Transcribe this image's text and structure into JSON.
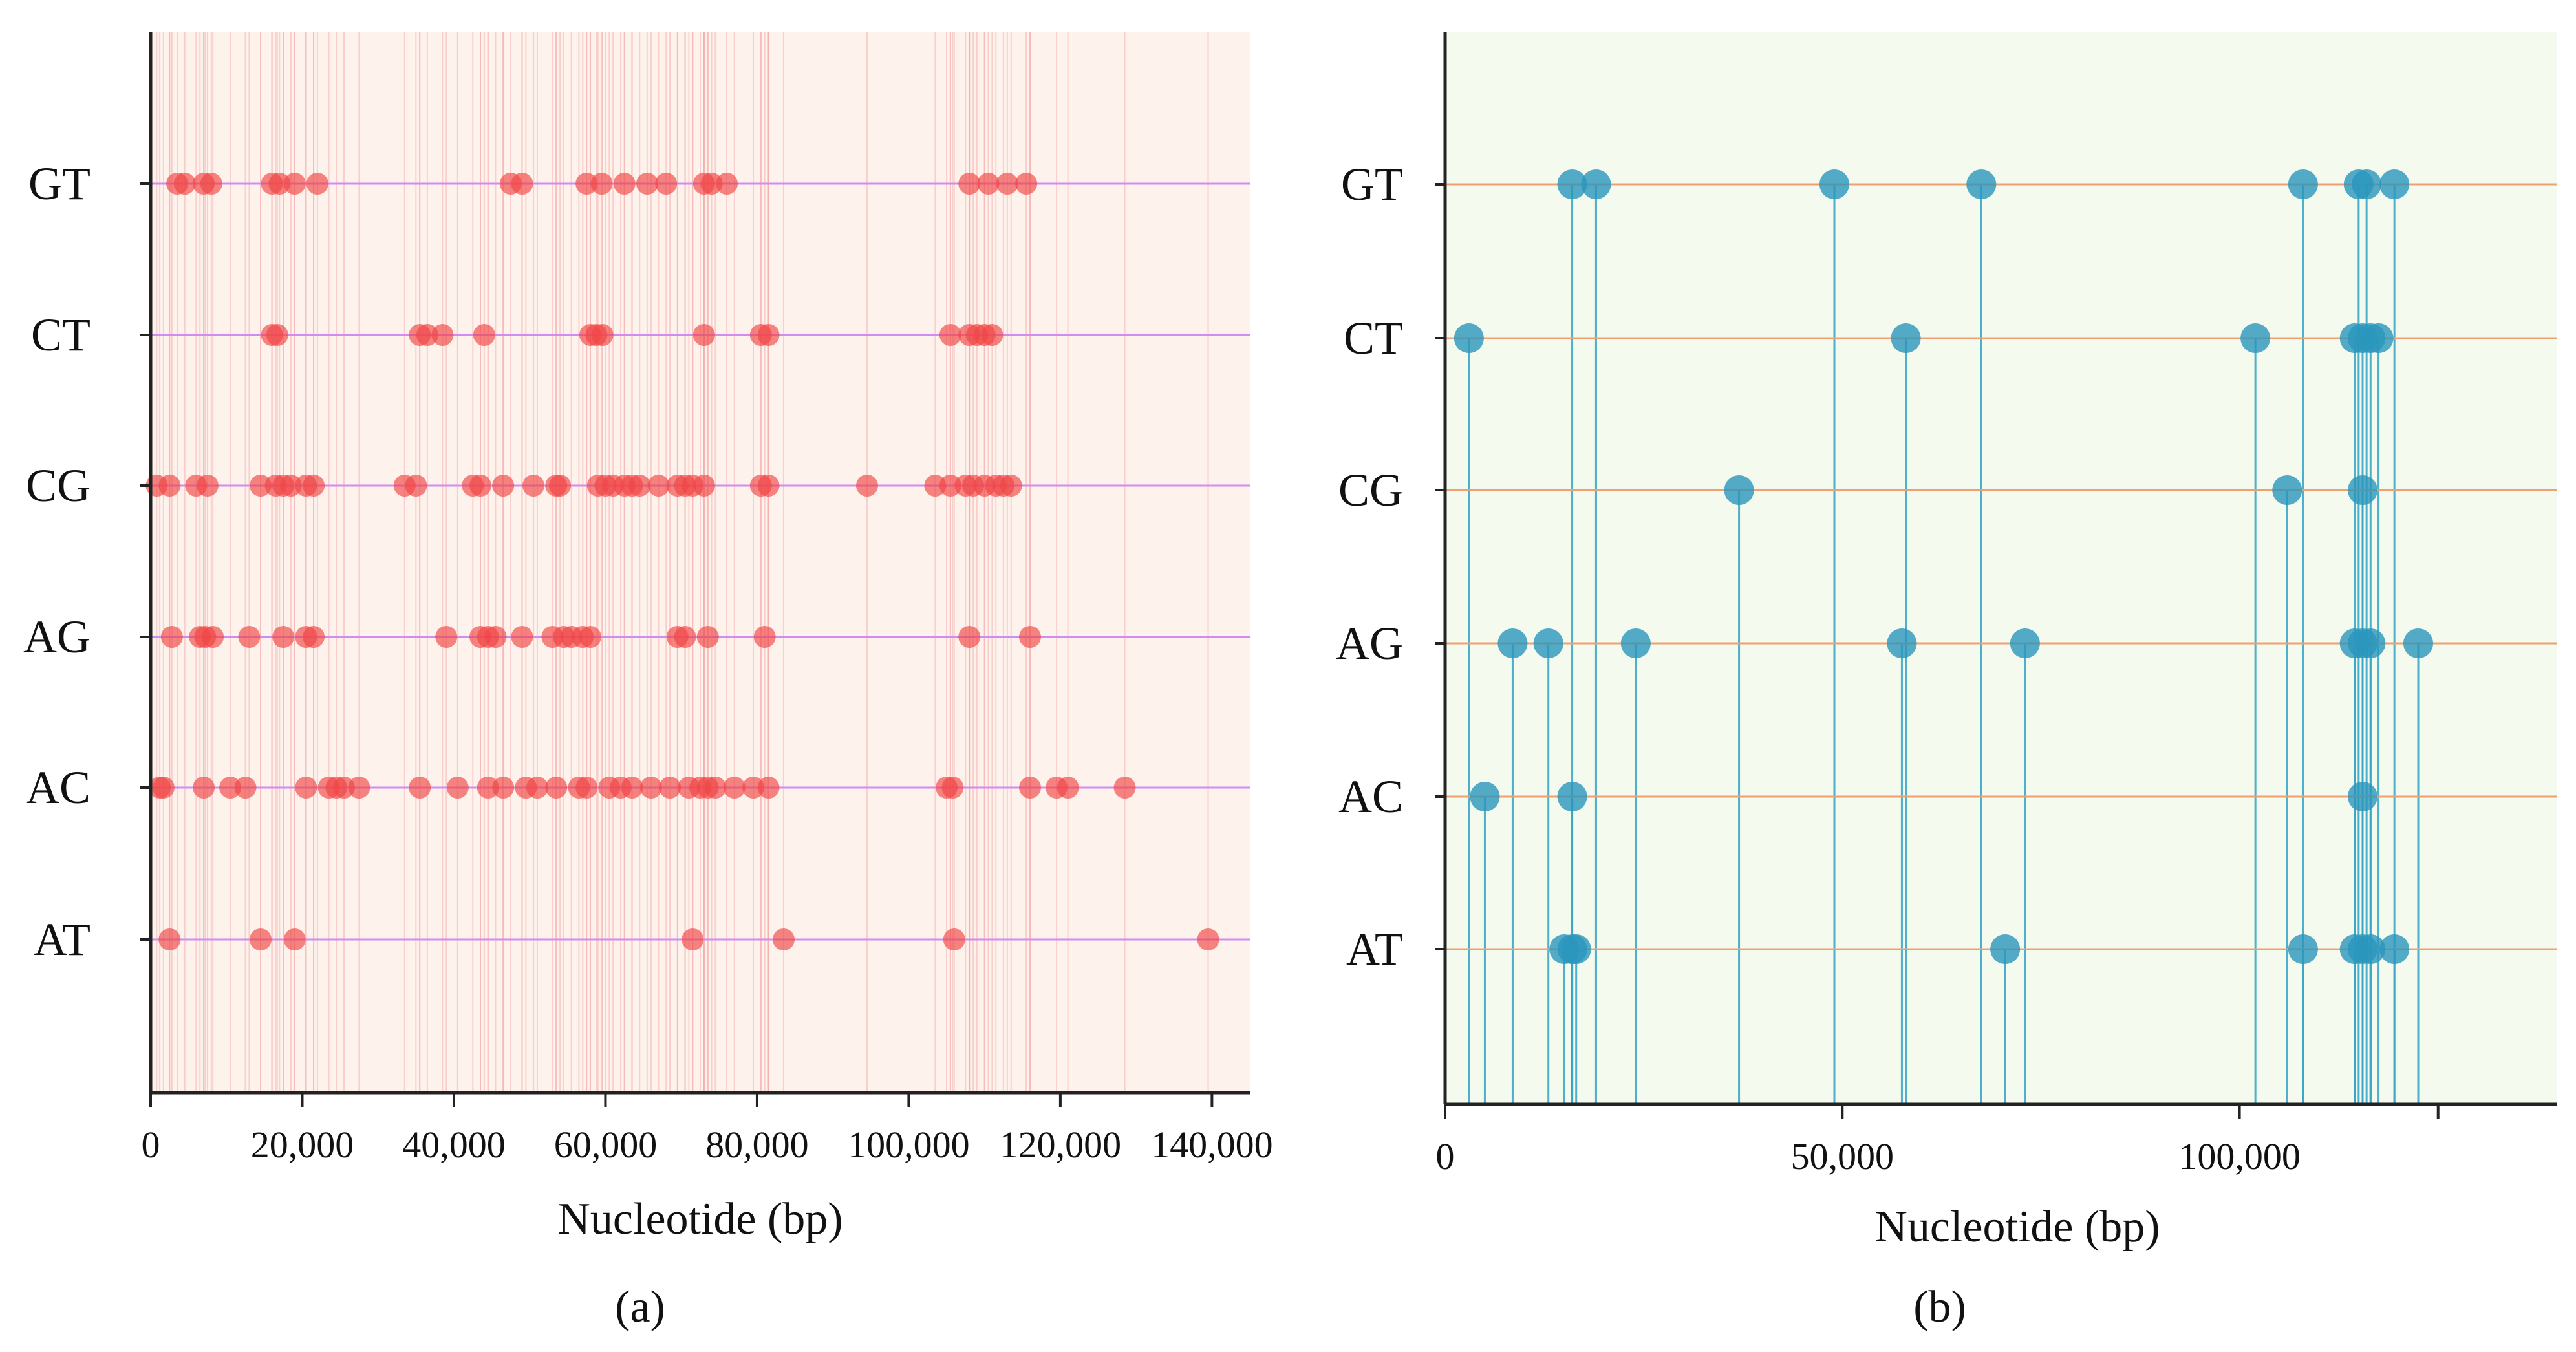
{
  "chart_data": [
    {
      "panel": "a",
      "type": "scatter",
      "caption": "(a)",
      "xlabel": "Nucleotide (bp)",
      "ylabel": "",
      "xlim": [
        0,
        145000
      ],
      "xticks": [
        0,
        20000,
        40000,
        60000,
        80000,
        100000,
        120000,
        140000
      ],
      "xtick_labels": [
        "0",
        "20,000",
        "40,000",
        "60,000",
        "80,000",
        "100,000",
        "120,000",
        "140,000"
      ],
      "categories": [
        "GT",
        "CT",
        "CG",
        "AG",
        "AC",
        "AT"
      ],
      "colors": {
        "background": "#fdf2ec",
        "marker": "#ef4545",
        "line": "#d28cf0",
        "stem": "#f3a3a3"
      },
      "series": [
        {
          "name": "GT",
          "x": [
            3500,
            4500,
            7000,
            8000,
            16000,
            17000,
            19000,
            22000,
            47500,
            49000,
            57500,
            59500,
            62500,
            65500,
            68000,
            73000,
            74000,
            76000,
            108000,
            110500,
            113000,
            115500
          ]
        },
        {
          "name": "CT",
          "x": [
            16000,
            16700,
            35500,
            36500,
            38500,
            44000,
            58000,
            58800,
            59600,
            73000,
            80500,
            81500,
            105500,
            108000,
            109000,
            110000,
            111000
          ]
        },
        {
          "name": "CG",
          "x": [
            800,
            2500,
            6000,
            7500,
            14500,
            16500,
            17500,
            18500,
            20500,
            21500,
            33500,
            35000,
            42500,
            43500,
            46500,
            50500,
            53500,
            54000,
            59000,
            60000,
            61000,
            62500,
            63500,
            64500,
            67000,
            69500,
            70500,
            71500,
            73000,
            80500,
            81500,
            94500,
            103500,
            105500,
            107500,
            108500,
            110000,
            111500,
            112500,
            113500
          ]
        },
        {
          "name": "AG",
          "x": [
            2800,
            6500,
            7200,
            8200,
            13000,
            17500,
            20500,
            21500,
            39000,
            43500,
            44500,
            45500,
            49000,
            53000,
            54500,
            55500,
            57000,
            58000,
            69500,
            70500,
            73500,
            81000,
            108000,
            116000
          ]
        },
        {
          "name": "AC",
          "x": [
            1200,
            1700,
            7000,
            10500,
            12500,
            20500,
            23500,
            24500,
            25500,
            27500,
            35500,
            40500,
            44500,
            46500,
            49500,
            51000,
            53500,
            56500,
            57500,
            60500,
            62000,
            63500,
            66000,
            68500,
            71000,
            72500,
            73500,
            74500,
            77000,
            79500,
            81500,
            105000,
            105800,
            116000,
            119500,
            121000,
            128500
          ]
        },
        {
          "name": "AT",
          "x": [
            2500,
            14500,
            19000,
            71500,
            83500,
            106000,
            139500
          ]
        }
      ]
    },
    {
      "panel": "b",
      "type": "scatter",
      "caption": "(b)",
      "xlabel": "Nucleotide (bp)",
      "ylabel": "",
      "xlim": [
        0,
        140000
      ],
      "xticks": [
        0,
        50000,
        100000
      ],
      "xtick_labels": [
        "0",
        "50,000",
        "100,000"
      ],
      "extra_ticks": [
        125000
      ],
      "categories": [
        "GT",
        "CT",
        "CG",
        "AG",
        "AC",
        "AT"
      ],
      "colors": {
        "background": "#f4faed",
        "marker": "#2b96bb",
        "marker_dark": "#0d6ea8",
        "line": "#f0a070",
        "stem": "#3aa6c7"
      },
      "series": [
        {
          "name": "GT",
          "x": [
            16000,
            19000,
            49000,
            67500,
            108000,
            115000,
            116000,
            119500
          ]
        },
        {
          "name": "CT",
          "x": [
            3000,
            58000,
            102000,
            114500,
            115500,
            116500,
            117500
          ]
        },
        {
          "name": "CG",
          "x": [
            37000,
            106000,
            115500
          ]
        },
        {
          "name": "AG",
          "x": [
            8500,
            13000,
            24000,
            57500,
            73000,
            114500,
            115500,
            116500,
            122500
          ]
        },
        {
          "name": "AC",
          "x": [
            5000,
            16000,
            115500
          ]
        },
        {
          "name": "AT",
          "x": [
            15000,
            16000,
            16500,
            70500,
            108000,
            114500,
            115500,
            116500,
            119500
          ]
        }
      ]
    }
  ]
}
